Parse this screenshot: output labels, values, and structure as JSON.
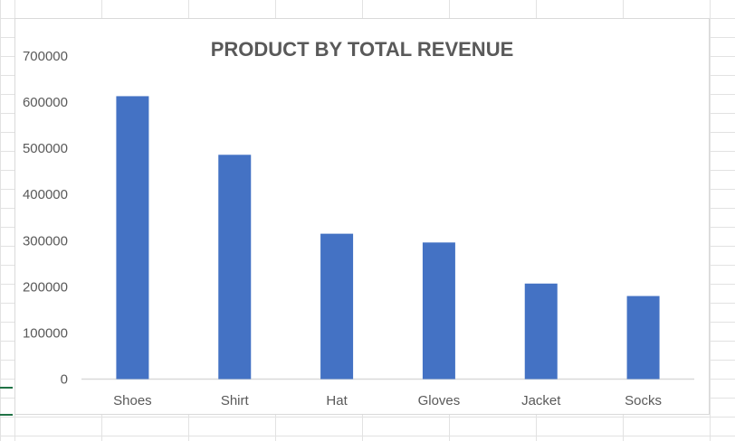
{
  "colors": {
    "bar": "#4472C4",
    "title": "#595959",
    "axis_text": "#595959",
    "chart_border": "#D9D9D9",
    "axis_line": "#D9D9D9",
    "sheet_grid": "#E2E2E2",
    "selection": "#217346"
  },
  "chart_data": {
    "type": "bar",
    "title": "PRODUCT BY TOTAL REVENUE",
    "xlabel": "",
    "ylabel": "",
    "categories": [
      "Shoes",
      "Shirt",
      "Hat",
      "Gloves",
      "Jacket",
      "Socks"
    ],
    "values": [
      613000,
      486000,
      315000,
      296000,
      207000,
      180000
    ],
    "ylim": [
      0,
      700000
    ],
    "yticks": [
      "0",
      "100000",
      "200000",
      "300000",
      "400000",
      "500000",
      "600000",
      "700000"
    ],
    "grid": false,
    "legend": "none"
  }
}
